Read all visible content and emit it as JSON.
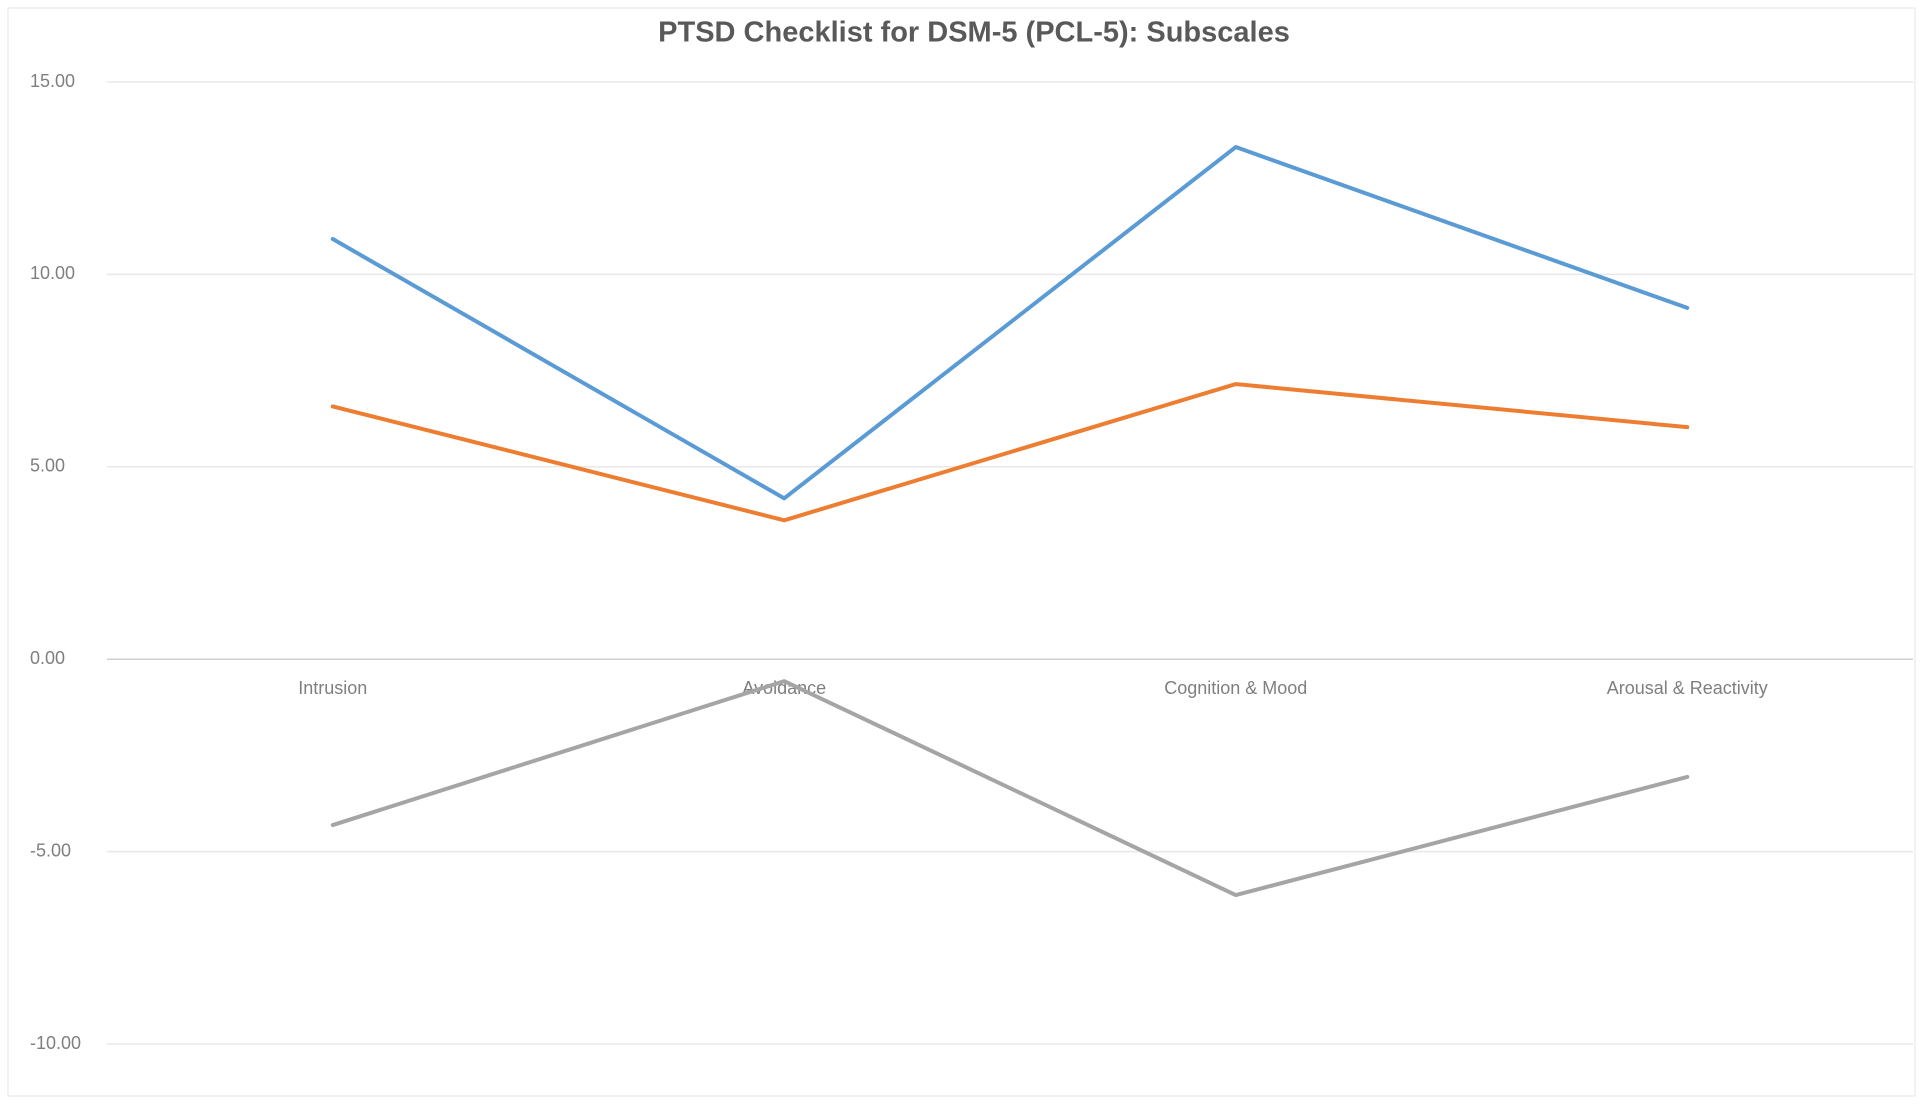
{
  "chart_data": {
    "type": "line",
    "title": "PTSD Checklist for DSM-5 (PCL-5): Subscales",
    "categories": [
      "Intrusion",
      "Avoidance",
      "Cognition & Mood",
      "Arousal & Reactivity"
    ],
    "series": [
      {
        "color": "#5b9bd5",
        "values": [
          10.92,
          4.18,
          13.31,
          9.13
        ]
      },
      {
        "color": "#ed7d31",
        "values": [
          6.57,
          3.61,
          7.15,
          6.03
        ]
      },
      {
        "color": "#a5a5a5",
        "values": [
          -4.31,
          -0.57,
          -6.13,
          -3.06
        ]
      }
    ],
    "ylim": [
      -10,
      15
    ],
    "yticks": [
      {
        "value": -10,
        "label": "-10.00"
      },
      {
        "value": -5,
        "label": "-5.00"
      },
      {
        "value": 0,
        "label": "0.00"
      },
      {
        "value": 5,
        "label": "5.00"
      },
      {
        "value": 10,
        "label": "10.00"
      },
      {
        "value": 15,
        "label": "15.00"
      }
    ],
    "grid": true
  }
}
